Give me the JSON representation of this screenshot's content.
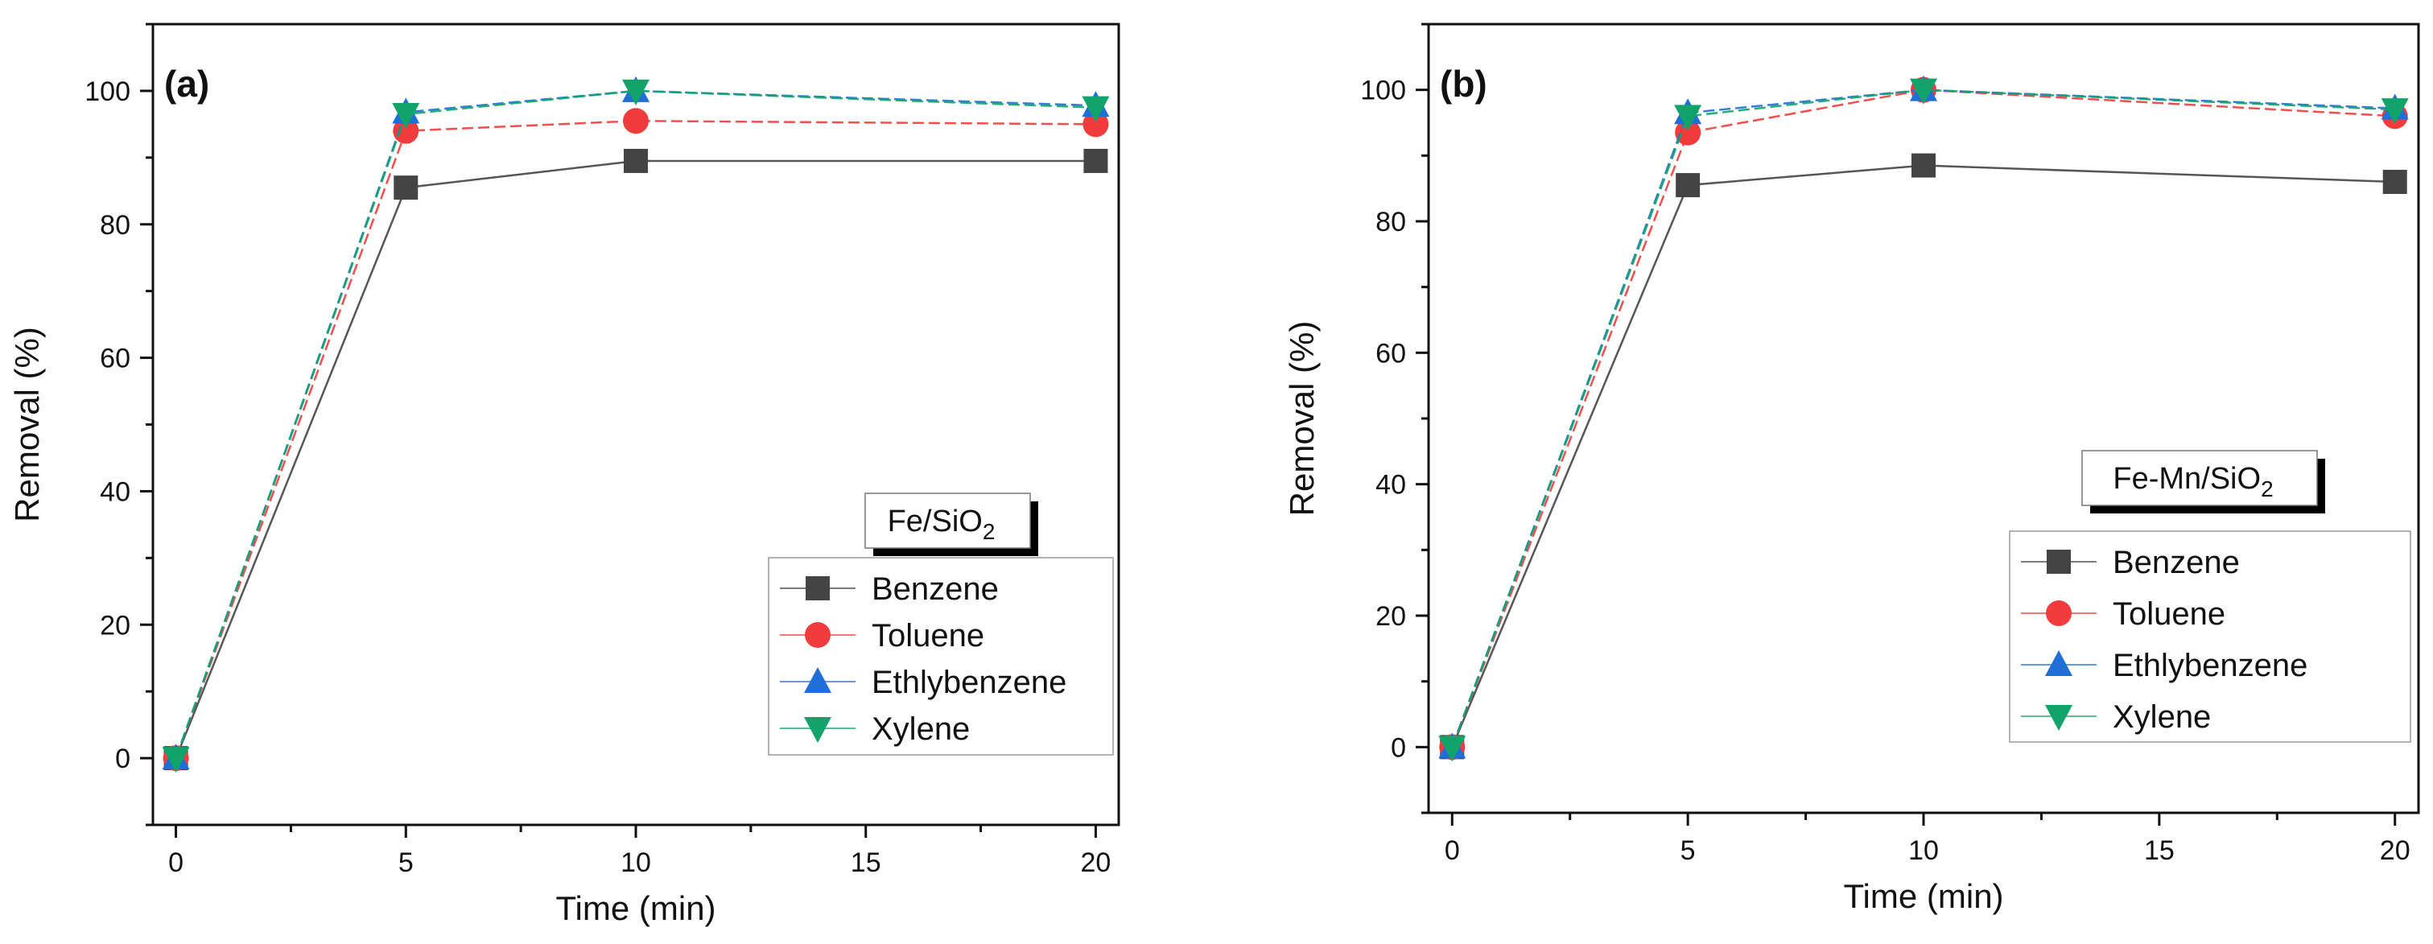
{
  "chart_data": [
    {
      "type": "line",
      "panel_label": "(a)",
      "title_box": {
        "main": "Fe/SiO",
        "sub": "2"
      },
      "xlabel": "Time (min)",
      "ylabel": "Removal  (%)",
      "xlim": [
        -0.5,
        20.5
      ],
      "ylim": [
        -10,
        110
      ],
      "xticks": [
        0,
        5,
        10,
        15,
        20
      ],
      "yticks": [
        0,
        20,
        40,
        60,
        80,
        100
      ],
      "x": [
        0,
        5,
        10,
        20
      ],
      "legend_position": "bottom-right",
      "series": [
        {
          "name": "Benzene",
          "values": [
            0,
            85.5,
            89.5,
            89.5
          ],
          "color": "#444444",
          "marker": "square"
        },
        {
          "name": "Toluene",
          "values": [
            0,
            94,
            95.5,
            95
          ],
          "color": "#f03c3c",
          "marker": "circle"
        },
        {
          "name": "Ethlybenzene",
          "values": [
            0,
            96.8,
            100,
            97.8
          ],
          "color": "#1f6fd6",
          "marker": "triangle-up"
        },
        {
          "name": "Xylene",
          "values": [
            0,
            96.5,
            100,
            97.5
          ],
          "color": "#12a36a",
          "marker": "triangle-down"
        }
      ]
    },
    {
      "type": "line",
      "panel_label": "(b)",
      "title_box": {
        "main": "Fe-Mn/SiO",
        "sub": "2"
      },
      "xlabel": "Time (min)",
      "ylabel": "Removal  (%)",
      "xlim": [
        -0.5,
        20.5
      ],
      "ylim": [
        -10,
        110
      ],
      "xticks": [
        0,
        5,
        10,
        15,
        20
      ],
      "yticks": [
        0,
        20,
        40,
        60,
        80,
        100
      ],
      "x": [
        0,
        5,
        10,
        20
      ],
      "legend_position": "bottom-right",
      "series": [
        {
          "name": "Benzene",
          "values": [
            0,
            85.5,
            88.5,
            86
          ],
          "color": "#444444",
          "marker": "square"
        },
        {
          "name": "Toluene",
          "values": [
            0,
            93.5,
            100,
            96
          ],
          "color": "#f03c3c",
          "marker": "circle"
        },
        {
          "name": "Ethlybenzene",
          "values": [
            0,
            96.5,
            100,
            97.2
          ],
          "color": "#1f6fd6",
          "marker": "triangle-up"
        },
        {
          "name": "Xylene",
          "values": [
            0,
            96,
            100,
            97
          ],
          "color": "#12a36a",
          "marker": "triangle-down"
        }
      ]
    }
  ]
}
